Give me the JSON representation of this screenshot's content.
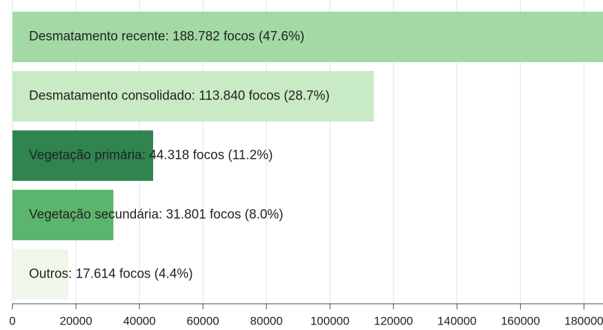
{
  "chart_data": {
    "type": "hbar",
    "categories": [
      null,
      null,
      null,
      null,
      null
    ],
    "values": [
      188782,
      113840,
      44318,
      31801,
      17614
    ],
    "value_labels": [
      "Desmatamento recente: 188.782 focos (47.6%)",
      "Desmatamento consolidado: 113.840 focos (28.7%)",
      "Vegetação primária: 44.318 focos (11.2%)",
      "Vegetação secundária: 31.801 focos (8.0%)",
      "Outros: 17.614 focos (4.4%)"
    ],
    "colors": [
      "#a3d9a5",
      "#c8eac4",
      "#2f8450",
      "#5cb56c",
      "#eef7ea"
    ],
    "xlim": [
      0,
      186000
    ],
    "xticks": [
      0,
      20000,
      40000,
      60000,
      80000,
      100000,
      120000,
      140000,
      160000,
      180000
    ],
    "grid": true
  }
}
